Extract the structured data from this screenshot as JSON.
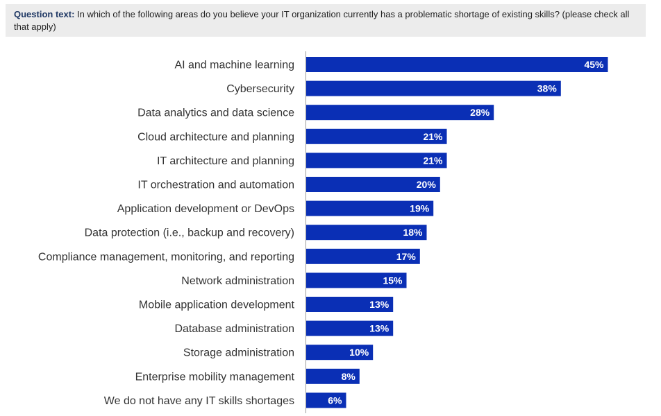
{
  "question": {
    "prefix": "Question text:",
    "text": "In which of the following areas do you believe your IT organization currently has a problematic shortage of existing skills? (please check all that apply)"
  },
  "colors": {
    "bar": "#0a2fb5",
    "axis": "#999999",
    "label": "#333333",
    "question_bg": "#ececec"
  },
  "chart_data": {
    "type": "bar",
    "orientation": "horizontal",
    "title": "",
    "xlabel": "",
    "ylabel": "",
    "xlim": [
      0,
      45
    ],
    "categories": [
      "AI and machine learning",
      "Cybersecurity",
      "Data analytics and data science",
      "Cloud architecture and planning",
      "IT architecture and planning",
      "IT orchestration and automation",
      "Application development or DevOps",
      "Data protection (i.e., backup and recovery)",
      "Compliance management, monitoring, and reporting",
      "Network administration",
      "Mobile application development",
      "Database administration",
      "Storage administration",
      "Enterprise mobility management",
      "We do not have any IT skills shortages"
    ],
    "values": [
      45,
      38,
      28,
      21,
      21,
      20,
      19,
      18,
      17,
      15,
      13,
      13,
      10,
      8,
      6
    ],
    "value_labels": [
      "45%",
      "38%",
      "28%",
      "21%",
      "21%",
      "20%",
      "19%",
      "18%",
      "17%",
      "15%",
      "13%",
      "13%",
      "10%",
      "8%",
      "6%"
    ]
  }
}
